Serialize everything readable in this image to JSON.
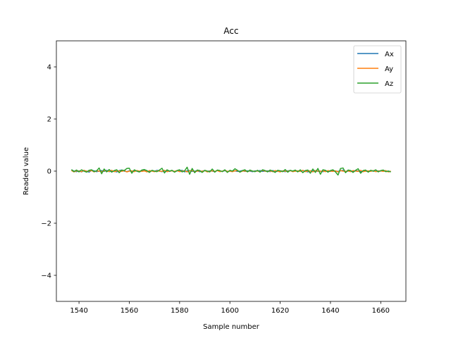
{
  "chart_data": {
    "type": "line",
    "title": "Acc",
    "xlabel": "Sample number",
    "ylabel": "Readed value",
    "xlim": [
      1531,
      1670
    ],
    "ylim": [
      -5,
      5
    ],
    "xticks": [
      1540,
      1560,
      1580,
      1600,
      1620,
      1640,
      1660
    ],
    "yticks": [
      -4,
      -2,
      0,
      2,
      4
    ],
    "ytick_labels": [
      "−4",
      "−2",
      "0",
      "2",
      "4"
    ],
    "grid": false,
    "legend_position": "top-right",
    "x_start": 1537,
    "x_end": 1664,
    "series": [
      {
        "name": "Ax",
        "color": "#1f77b4",
        "values": [
          0.05,
          0.0,
          -0.02,
          0.01,
          -0.03,
          0.02,
          0.0,
          -0.04,
          0.03,
          0.01,
          -0.02,
          0.0,
          0.02,
          -0.01,
          0.03,
          -0.02,
          0.01,
          0.0,
          -0.03,
          0.02,
          0.04,
          0.0,
          -0.02,
          0.01,
          -0.01,
          0.02,
          0.0,
          -0.03,
          0.01,
          0.02,
          -0.02,
          0.0,
          0.01,
          -0.01,
          0.03,
          0.0,
          -0.02,
          0.01,
          0.0,
          -0.01,
          0.02,
          -0.02,
          0.01,
          0.0,
          0.03,
          -0.03,
          0.01,
          0.02,
          -0.01,
          0.0,
          0.01,
          -0.02,
          0.0,
          0.02,
          -0.01,
          0.01,
          0.0,
          -0.02,
          0.03,
          0.0,
          -0.01,
          0.02,
          -0.02,
          0.01,
          0.0,
          0.01,
          -0.01,
          0.0,
          0.02,
          -0.01,
          0.01,
          0.0,
          -0.02,
          0.01,
          0.0,
          0.02,
          -0.01,
          0.0,
          0.01,
          -0.02,
          0.02,
          0.0,
          -0.01,
          0.01,
          0.0,
          -0.02,
          0.01,
          0.02,
          -0.01,
          0.0,
          0.01,
          -0.01,
          0.02,
          0.0,
          -0.03,
          0.01,
          0.0,
          0.02,
          -0.01,
          0.0,
          -0.02,
          0.01,
          0.0,
          -0.01,
          0.02,
          0.0,
          -0.01,
          0.01,
          0.03,
          -0.02,
          0.0,
          0.01,
          -0.01,
          0.02,
          0.0,
          -0.02,
          0.01,
          0.0,
          -0.01,
          0.02,
          0.0,
          -0.01,
          0.01,
          0.0,
          0.02,
          -0.01,
          0.0,
          -0.02
        ]
      },
      {
        "name": "Ay",
        "color": "#ff7f0e",
        "values": [
          0.02,
          -0.03,
          0.01,
          0.0,
          -0.02,
          0.03,
          -0.01,
          0.0,
          0.02,
          -0.03,
          0.01,
          0.0,
          -0.02,
          0.02,
          0.0,
          -0.01,
          0.03,
          -0.02,
          0.0,
          0.01,
          -0.01,
          0.02,
          -0.03,
          0.0,
          0.01,
          -0.02,
          0.02,
          0.0,
          -0.01,
          0.01,
          -0.03,
          0.02,
          0.0,
          -0.02,
          0.01,
          0.0,
          -0.01,
          0.03,
          -0.02,
          0.0,
          0.01,
          -0.01,
          0.02,
          -0.02,
          0.0,
          0.01,
          -0.03,
          0.01,
          0.02,
          -0.02,
          0.0,
          0.01,
          -0.01,
          0.02,
          -0.03,
          0.0,
          0.01,
          -0.01,
          0.02,
          -0.02,
          0.0,
          0.03,
          -0.01,
          0.0,
          -0.02,
          0.01,
          0.02,
          -0.03,
          0.0,
          0.01,
          -0.02,
          0.02,
          0.0,
          -0.01,
          0.01,
          -0.02,
          0.03,
          0.0,
          -0.01,
          0.01,
          -0.02,
          0.02,
          0.0,
          -0.03,
          0.01,
          0.0,
          -0.01,
          0.02,
          -0.02,
          0.0,
          0.01,
          -0.01,
          0.03,
          -0.02,
          0.0,
          0.01,
          -0.03,
          0.02,
          0.0,
          -0.01,
          0.01,
          -0.02,
          0.02,
          0.0,
          -0.01,
          0.01,
          -0.03,
          0.02,
          0.0,
          -0.01,
          0.01,
          -0.02,
          0.02,
          0.0,
          -0.01,
          0.03,
          -0.02,
          0.0,
          0.01,
          -0.01,
          0.02,
          -0.02,
          0.0,
          0.01,
          -0.01,
          0.02,
          -0.03,
          0.0
        ]
      },
      {
        "name": "Az",
        "color": "#2ca02c",
        "values": [
          0.06,
          -0.02,
          0.04,
          -0.03,
          0.05,
          0.0,
          -0.04,
          0.03,
          0.05,
          -0.02,
          0.01,
          0.12,
          -0.1,
          0.08,
          -0.03,
          0.06,
          -0.04,
          0.02,
          0.05,
          -0.06,
          0.04,
          0.02,
          0.1,
          0.11,
          -0.08,
          0.05,
          0.0,
          -0.03,
          0.04,
          0.06,
          0.02,
          -0.05,
          0.03,
          0.0,
          -0.02,
          0.04,
          0.11,
          -0.07,
          0.05,
          0.0,
          0.03,
          -0.04,
          0.02,
          0.05,
          -0.03,
          0.01,
          0.15,
          -0.12,
          0.1,
          -0.06,
          0.04,
          0.02,
          -0.05,
          0.03,
          0.0,
          -0.03,
          0.08,
          -0.04,
          0.04,
          0.02,
          -0.02,
          0.05,
          -0.05,
          0.03,
          0.0,
          0.09,
          0.03,
          -0.04,
          0.02,
          0.05,
          -0.03,
          0.04,
          0.0,
          -0.02,
          0.03,
          -0.04,
          0.05,
          0.02,
          -0.03,
          0.04,
          0.0,
          -0.05,
          0.03,
          0.01,
          -0.02,
          0.06,
          -0.04,
          0.03,
          0.0,
          0.04,
          -0.03,
          0.05,
          -0.06,
          0.02,
          0.04,
          -0.08,
          0.08,
          -0.05,
          0.1,
          -0.12,
          0.05,
          0.03,
          -0.04,
          0.02,
          0.05,
          -0.03,
          -0.15,
          0.1,
          0.12,
          -0.06,
          0.04,
          0.02,
          -0.05,
          0.03,
          0.09,
          -0.08,
          0.02,
          0.04,
          -0.04,
          0.03,
          0.0,
          0.05,
          -0.03,
          0.02,
          0.04,
          -0.02,
          0.0,
          -0.03
        ]
      }
    ]
  }
}
